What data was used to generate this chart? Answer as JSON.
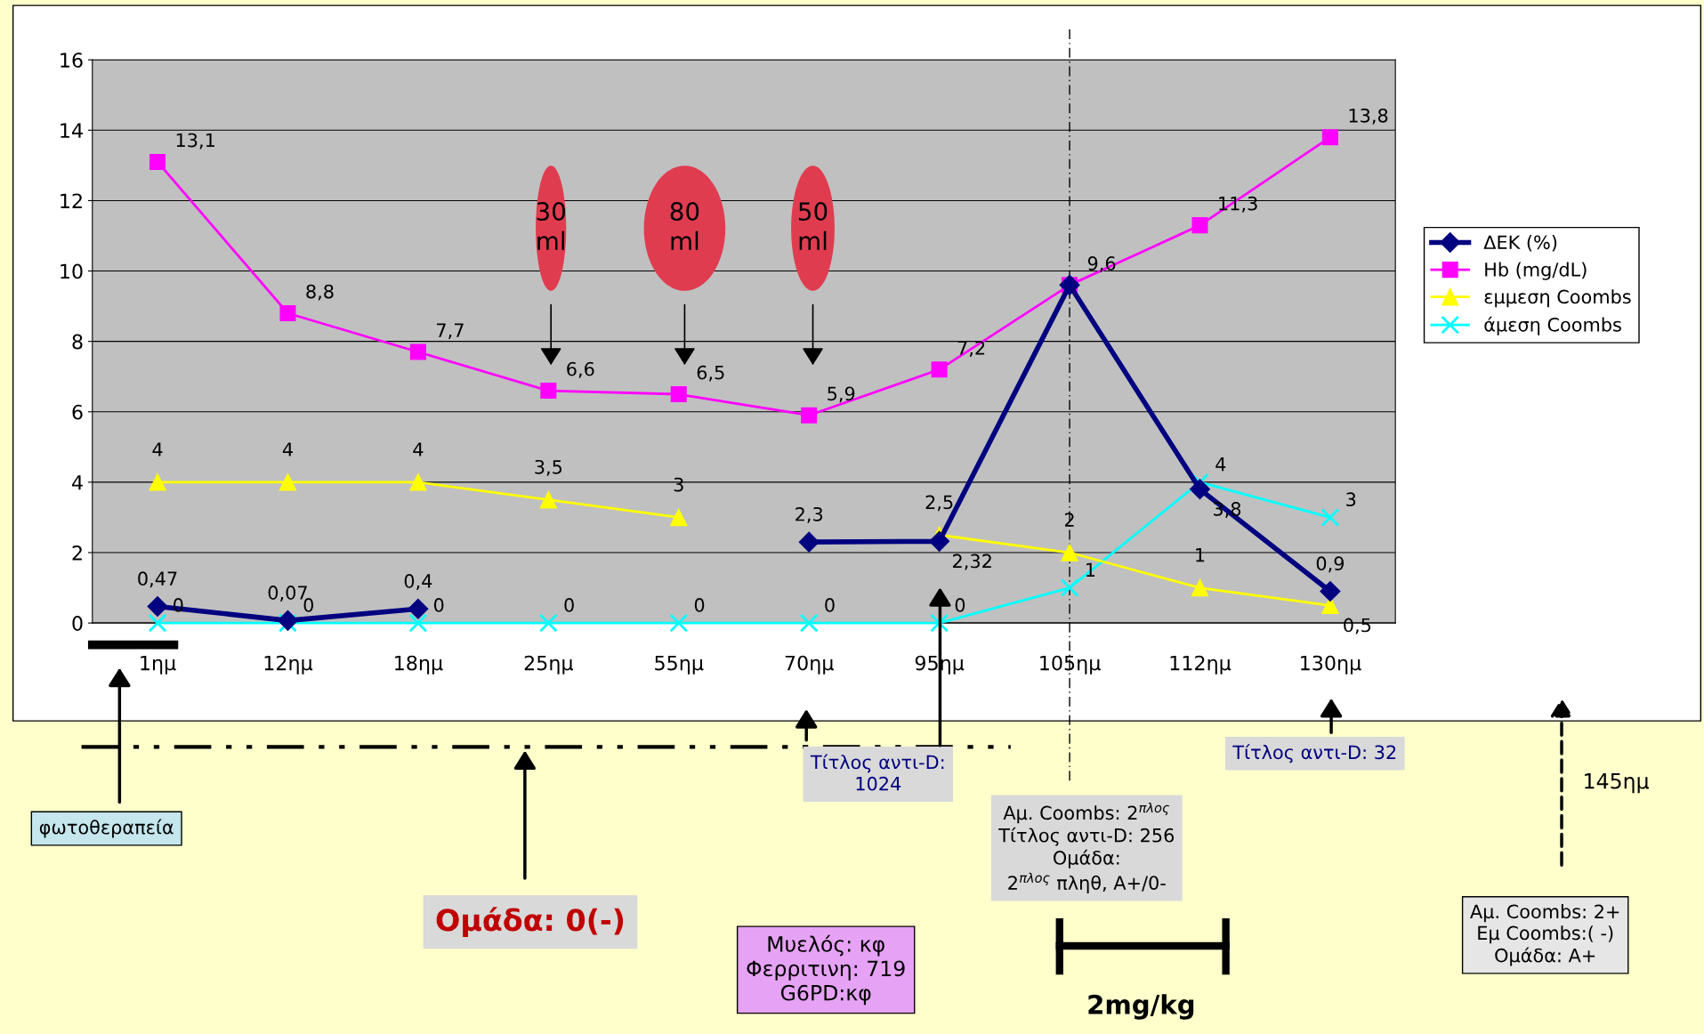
{
  "chart_data": {
    "type": "line",
    "categories": [
      "1ημ",
      "12ημ",
      "18ημ",
      "25ημ",
      "55ημ",
      "70ημ",
      "95ημ",
      "105ημ",
      "112ημ",
      "130ημ"
    ],
    "series": [
      {
        "name": "ΔΕΚ (%)",
        "color": "#000080",
        "marker": "diamond",
        "values": [
          0.47,
          0.07,
          0.4,
          null,
          null,
          2.3,
          2.32,
          9.6,
          3.8,
          0.9
        ],
        "value_labels": [
          "0,47",
          "0,07",
          "0,4",
          null,
          null,
          "2,3",
          "2,32",
          null,
          "3,8",
          "0,9"
        ]
      },
      {
        "name": "Hb (mg/dL)",
        "color": "#ff00ff",
        "marker": "square",
        "values": [
          13.1,
          8.8,
          7.7,
          6.6,
          6.5,
          5.9,
          7.2,
          9.6,
          11.3,
          13.8
        ],
        "value_labels": [
          "13,1",
          "8,8",
          "7,7",
          "6,6",
          "6,5",
          "5,9",
          "7,2",
          "9,6",
          "11,3",
          "13,8"
        ]
      },
      {
        "name": "εμμεση Coombs",
        "color": "#ffff00",
        "marker": "triangle",
        "values": [
          4,
          4,
          4,
          3.5,
          3,
          null,
          2.5,
          2,
          1,
          0.5
        ],
        "value_labels": [
          "4",
          "4",
          "4",
          "3,5",
          "3",
          null,
          "2,5",
          "2",
          "1",
          "0,5"
        ]
      },
      {
        "name": "άμεση Coombs",
        "color": "#00ffff",
        "marker": "cross",
        "values": [
          0,
          0,
          0,
          0,
          0,
          0,
          0,
          1,
          4,
          3
        ],
        "value_labels": [
          "0",
          "0",
          "0",
          "0",
          "0",
          "0",
          "0",
          "1",
          "4",
          "3"
        ]
      }
    ],
    "ylim": [
      0,
      16
    ],
    "yticks": [
      0,
      2,
      4,
      6,
      8,
      10,
      12,
      14,
      16
    ],
    "grid": "y",
    "legend": "right",
    "ref_lines": [
      {
        "axis": "x",
        "value": "105ημ"
      }
    ],
    "annotations": [
      "30\nml",
      "80\nml",
      "50\nml",
      "φωτοθεραπεία",
      "Ομάδα: 0(-)",
      "Μυελός: κφ\nΦερριτινη: 719\nG6PD:κφ",
      "Τίτλος αντι-D:\n1024",
      "Αμ. Coombs: 2$^{πλος}$\nΤίτλος αντι-D: 256\nΟμάδα:\n2$^{πλος}$ πληθ, A+/0-",
      "Τίτλος αντι-D: 32",
      "145ημ",
      "Αμ. Coombs: 2+\nΕμ Coombs:( -)\nΟμάδα: A+",
      "2mg/kg"
    ]
  }
}
